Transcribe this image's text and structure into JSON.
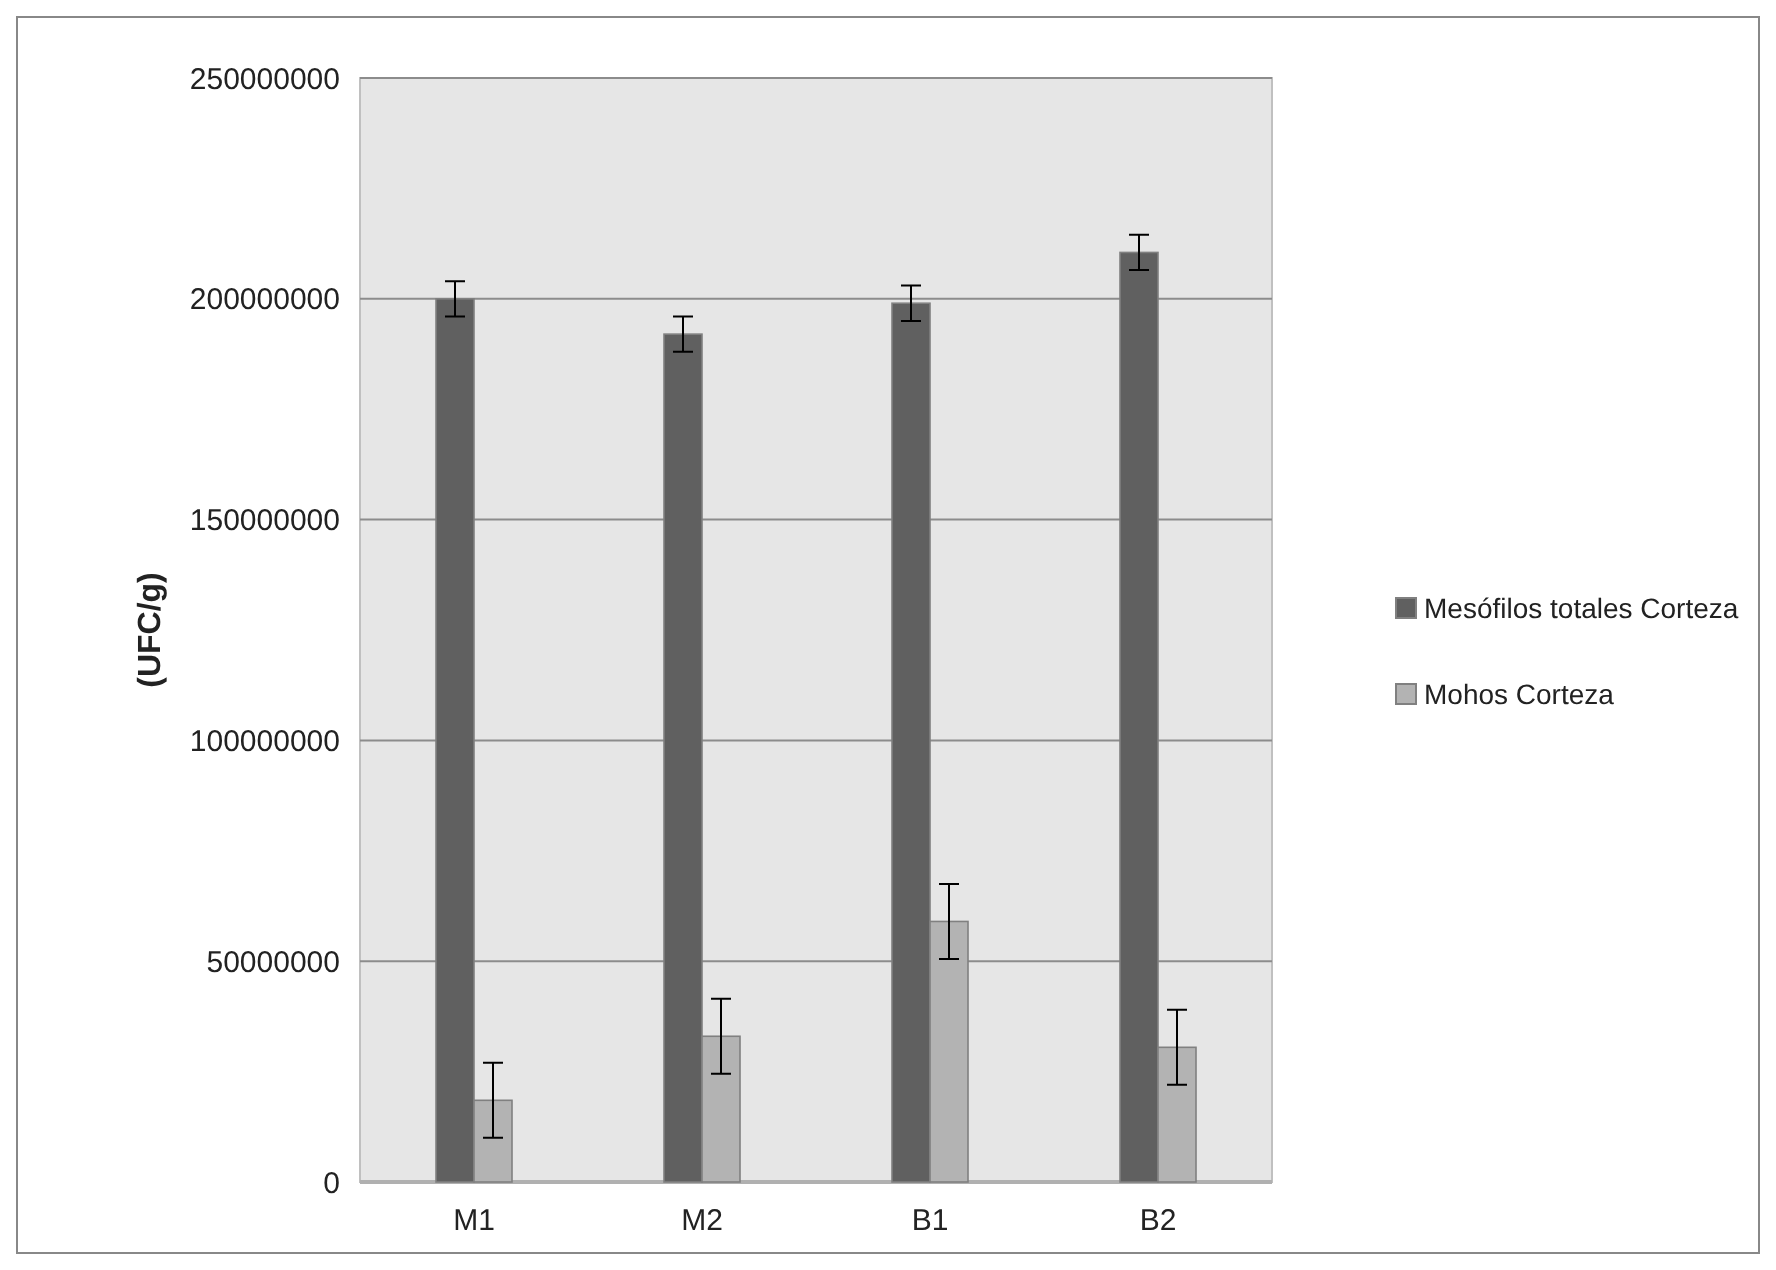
{
  "chart_data": {
    "type": "bar",
    "ylabel": "(UFC/g)",
    "categories": [
      "M1",
      "M2",
      "B1",
      "B2"
    ],
    "ylim": [
      0,
      250000000
    ],
    "yticks": [
      0,
      50000000,
      100000000,
      150000000,
      200000000,
      250000000
    ],
    "grid": "y",
    "legend": "right",
    "series": [
      {
        "name": "Mesófilos totales Corteza",
        "color": "#606060",
        "values": [
          200000000,
          192000000,
          199000000,
          210500000
        ],
        "errors": [
          4000000,
          4000000,
          4000000,
          4000000
        ]
      },
      {
        "name": "Mohos Corteza",
        "color": "#b3b3b3",
        "values": [
          18500000,
          33000000,
          59000000,
          30500000
        ],
        "errors": [
          8500000,
          8500000,
          8500000,
          8500000
        ]
      }
    ]
  }
}
